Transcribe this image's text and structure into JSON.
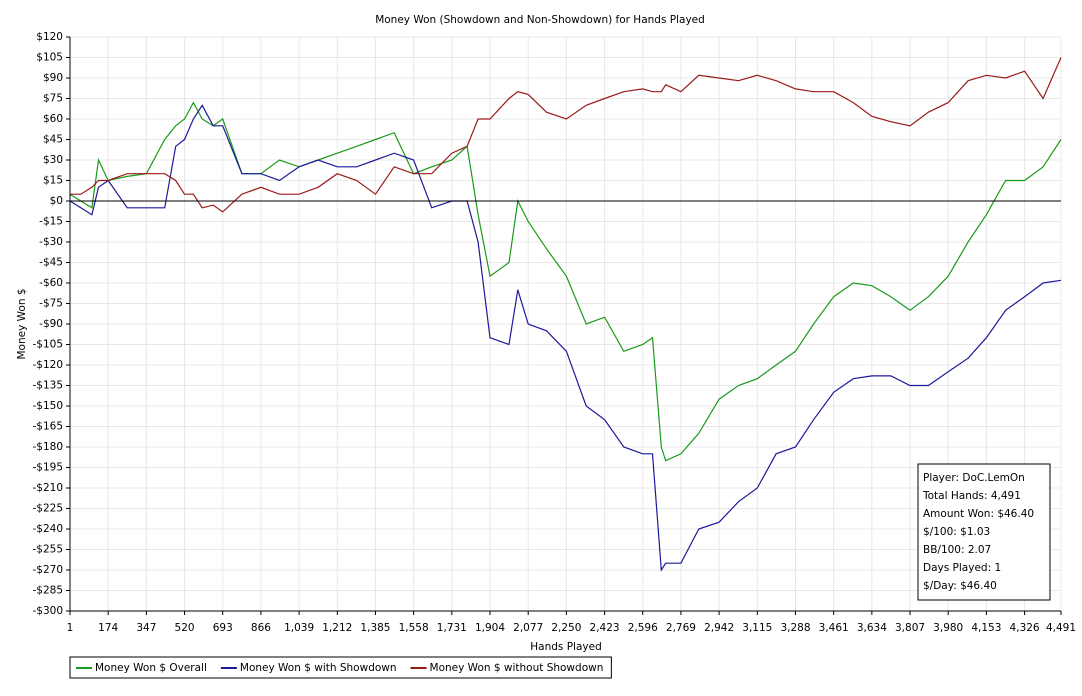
{
  "chart_data": {
    "type": "line",
    "title": "Money Won (Showdown and Non-Showdown) for Hands Played",
    "x_label": "Hands Played",
    "y_label": "Money Won $",
    "x": [
      1,
      50,
      100,
      130,
      174,
      260,
      347,
      430,
      480,
      520,
      560,
      600,
      650,
      693,
      780,
      866,
      950,
      1039,
      1125,
      1212,
      1300,
      1385,
      1470,
      1558,
      1640,
      1731,
      1800,
      1850,
      1904,
      1990,
      2030,
      2077,
      2160,
      2250,
      2340,
      2423,
      2510,
      2596,
      2640,
      2680,
      2700,
      2769,
      2850,
      2942,
      3030,
      3115,
      3200,
      3288,
      3370,
      3461,
      3550,
      3634,
      3720,
      3807,
      3890,
      3980,
      4070,
      4153,
      4240,
      4326,
      4410,
      4491
    ],
    "series": [
      {
        "name": "Money Won $ Overall",
        "color": "#1a9a1a",
        "values": [
          5,
          0,
          -5,
          30,
          15,
          18,
          20,
          45,
          55,
          60,
          72,
          60,
          55,
          60,
          20,
          20,
          30,
          25,
          30,
          35,
          40,
          45,
          50,
          20,
          25,
          30,
          40,
          -10,
          -55,
          -45,
          0,
          -15,
          -35,
          -55,
          -90,
          -85,
          -110,
          -105,
          -100,
          -180,
          -190,
          -185,
          -170,
          -145,
          -135,
          -130,
          -120,
          -110,
          -90,
          -70,
          -60,
          -62,
          -70,
          -80,
          -70,
          -55,
          -30,
          -10,
          15,
          15,
          25,
          45
        ]
      },
      {
        "name": "Money Won $ with Showdown",
        "color": "#1a1a9a",
        "values": [
          0,
          -5,
          -10,
          10,
          15,
          -5,
          -5,
          -5,
          40,
          45,
          60,
          70,
          55,
          55,
          20,
          20,
          15,
          25,
          30,
          25,
          25,
          30,
          35,
          30,
          -5,
          0,
          0,
          -30,
          -100,
          -105,
          -65,
          -90,
          -95,
          -110,
          -150,
          -160,
          -180,
          -185,
          -185,
          -270,
          -265,
          -265,
          -240,
          -235,
          -220,
          -210,
          -185,
          -180,
          -160,
          -140,
          -130,
          -128,
          -128,
          -135,
          -135,
          -125,
          -115,
          -100,
          -80,
          -70,
          -60,
          -58
        ]
      },
      {
        "name": "Money Won $ without Showdown",
        "color": "#9a1a1a",
        "values": [
          5,
          5,
          10,
          15,
          15,
          20,
          20,
          20,
          15,
          5,
          5,
          -5,
          -3,
          -8,
          5,
          10,
          5,
          5,
          10,
          20,
          15,
          5,
          25,
          20,
          20,
          35,
          40,
          60,
          60,
          75,
          80,
          78,
          65,
          60,
          70,
          75,
          80,
          82,
          80,
          80,
          85,
          80,
          92,
          90,
          88,
          92,
          88,
          82,
          80,
          80,
          72,
          62,
          58,
          55,
          65,
          72,
          88,
          92,
          90,
          95,
          75,
          105
        ]
      }
    ],
    "xlim": [
      1,
      4491
    ],
    "xticks": [
      1,
      174,
      347,
      520,
      693,
      866,
      {
        "value": 1039,
        "label": "1,039"
      },
      {
        "value": 1212,
        "label": "1,212"
      },
      {
        "value": 1385,
        "label": "1,385"
      },
      {
        "value": 1558,
        "label": "1,558"
      },
      {
        "value": 1731,
        "label": "1,731"
      },
      {
        "value": 1904,
        "label": "1,904"
      },
      {
        "value": 2077,
        "label": "2,077"
      },
      {
        "value": 2250,
        "label": "2,250"
      },
      {
        "value": 2423,
        "label": "2,423"
      },
      {
        "value": 2596,
        "label": "2,596"
      },
      {
        "value": 2769,
        "label": "2,769"
      },
      {
        "value": 2942,
        "label": "2,942"
      },
      {
        "value": 3115,
        "label": "3,115"
      },
      {
        "value": 3288,
        "label": "3,288"
      },
      {
        "value": 3461,
        "label": "3,461"
      },
      {
        "value": 3634,
        "label": "3,634"
      },
      {
        "value": 3807,
        "label": "3,807"
      },
      {
        "value": 3980,
        "label": "3,980"
      },
      {
        "value": 4153,
        "label": "4,153"
      },
      {
        "value": 4326,
        "label": "4,326"
      },
      {
        "value": 4491,
        "label": "4,491"
      }
    ],
    "ylim": [
      -300,
      120
    ],
    "yticks": [
      {
        "value": 120,
        "label": "$120"
      },
      {
        "value": 105,
        "label": "$105"
      },
      {
        "value": 90,
        "label": "$90"
      },
      {
        "value": 75,
        "label": "$75"
      },
      {
        "value": 60,
        "label": "$60"
      },
      {
        "value": 45,
        "label": "$45"
      },
      {
        "value": 30,
        "label": "$30"
      },
      {
        "value": 15,
        "label": "$15"
      },
      {
        "value": 0,
        "label": "$0"
      },
      {
        "value": -15,
        "label": "-$15"
      },
      {
        "value": -30,
        "label": "-$30"
      },
      {
        "value": -45,
        "label": "-$45"
      },
      {
        "value": -60,
        "label": "-$60"
      },
      {
        "value": -75,
        "label": "-$75"
      },
      {
        "value": -90,
        "label": "-$90"
      },
      {
        "value": -105,
        "label": "-$105"
      },
      {
        "value": -120,
        "label": "-$120"
      },
      {
        "value": -135,
        "label": "-$135"
      },
      {
        "value": -150,
        "label": "-$150"
      },
      {
        "value": -165,
        "label": "-$165"
      },
      {
        "value": -180,
        "label": "-$180"
      },
      {
        "value": -195,
        "label": "-$195"
      },
      {
        "value": -210,
        "label": "-$210"
      },
      {
        "value": -225,
        "label": "-$225"
      },
      {
        "value": -240,
        "label": "-$240"
      },
      {
        "value": -255,
        "label": "-$255"
      },
      {
        "value": -270,
        "label": "-$270"
      },
      {
        "value": -285,
        "label": "-$285"
      },
      {
        "value": -300,
        "label": "-$300"
      }
    ],
    "grid": true,
    "legend": "bottom",
    "info_box": [
      "Player: DoC.LemOn",
      "Total Hands: 4,491",
      "Amount Won: $46.40",
      "$/100: $1.03",
      "BB/100: 2.07",
      "Days Played: 1",
      "$/Day: $46.40"
    ]
  }
}
